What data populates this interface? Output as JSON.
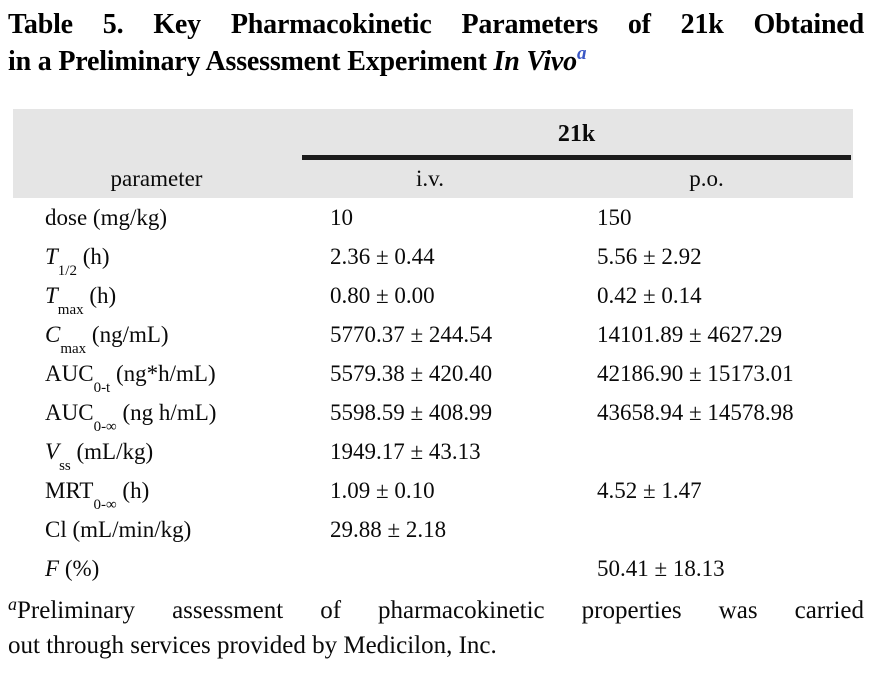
{
  "title": {
    "line1": "Table 5. Key Pharmacokinetic Parameters of 21k Obtained",
    "line2_prefix": "in a Preliminary Assessment Experiment ",
    "line2_italic": "In Vivo",
    "footnote_marker": "a"
  },
  "colors": {
    "header_band": "#e5e5e5",
    "rule": "#1c1c1c",
    "title_marker_blue": "#3a57c5",
    "text": "#0a0a0a"
  },
  "table": {
    "group_header": "21k",
    "column_headers": [
      "parameter",
      "i.v.",
      "p.o."
    ],
    "rows": [
      {
        "name": "dose",
        "italic": false,
        "sub": "",
        "unit": "(mg/kg)",
        "iv": "10",
        "po": "150"
      },
      {
        "name": "T",
        "italic": true,
        "sub": "1/2",
        "unit": "(h)",
        "iv": "2.36 ± 0.44",
        "po": "5.56 ± 2.92"
      },
      {
        "name": "T",
        "italic": true,
        "sub": "max",
        "unit": "(h)",
        "iv": "0.80 ± 0.00",
        "po": "0.42 ± 0.14"
      },
      {
        "name": "C",
        "italic": true,
        "sub": "max",
        "unit": "(ng/mL)",
        "iv": "5770.37 ± 244.54",
        "po": "14101.89 ± 4627.29"
      },
      {
        "name": "AUC",
        "italic": false,
        "sub": "0-t",
        "unit": "(ng*h/mL)",
        "iv": "5579.38 ± 420.40",
        "po": "42186.90 ± 15173.01"
      },
      {
        "name": "AUC",
        "italic": false,
        "sub": "0-∞",
        "unit": "(ng h/mL)",
        "iv": "5598.59 ± 408.99",
        "po": "43658.94 ± 14578.98"
      },
      {
        "name": "V",
        "italic": true,
        "sub": "ss",
        "unit": "(mL/kg)",
        "iv": "1949.17 ± 43.13",
        "po": ""
      },
      {
        "name": "MRT",
        "italic": false,
        "sub": "0-∞",
        "unit": "(h)",
        "iv": "1.09 ± 0.10",
        "po": "4.52 ± 1.47"
      },
      {
        "name": "Cl",
        "italic": false,
        "sub": "",
        "unit": "(mL/min/kg)",
        "iv": "29.88 ± 2.18",
        "po": ""
      },
      {
        "name": "F",
        "italic": true,
        "sub": "",
        "unit": "(%)",
        "iv": "",
        "po": "50.41 ± 18.13"
      }
    ]
  },
  "footnote": {
    "marker": "a",
    "line1": "Preliminary assessment of pharmacokinetic properties was carried",
    "line2": "out through services provided by Medicilon, Inc."
  }
}
